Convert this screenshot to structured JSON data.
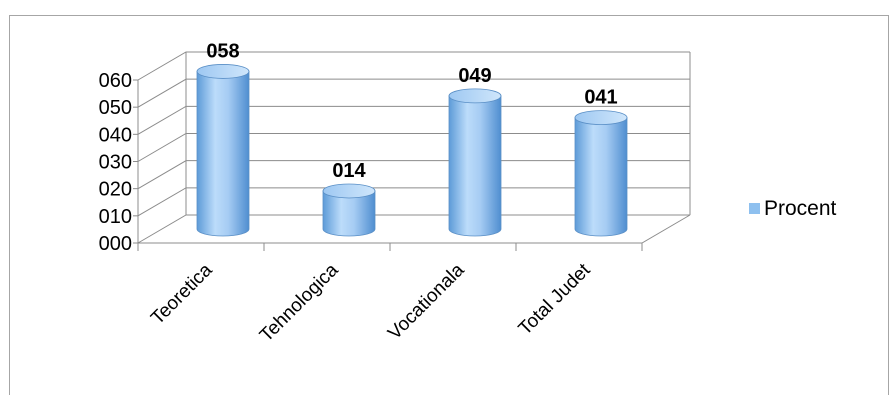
{
  "chart_data": {
    "type": "bar",
    "categories": [
      "Teoretica",
      "Tehnologica",
      "Vocationala",
      "Total Judet"
    ],
    "series": [
      {
        "name": "Procent",
        "values": [
          58,
          14,
          49,
          41
        ]
      }
    ],
    "data_labels": [
      "058",
      "014",
      "049",
      "041"
    ],
    "ylim": [
      0,
      60
    ],
    "yticks": [
      "000",
      "010",
      "020",
      "030",
      "040",
      "050",
      "060"
    ],
    "grid": true,
    "legend": "right",
    "color": "#8ec0ef"
  }
}
